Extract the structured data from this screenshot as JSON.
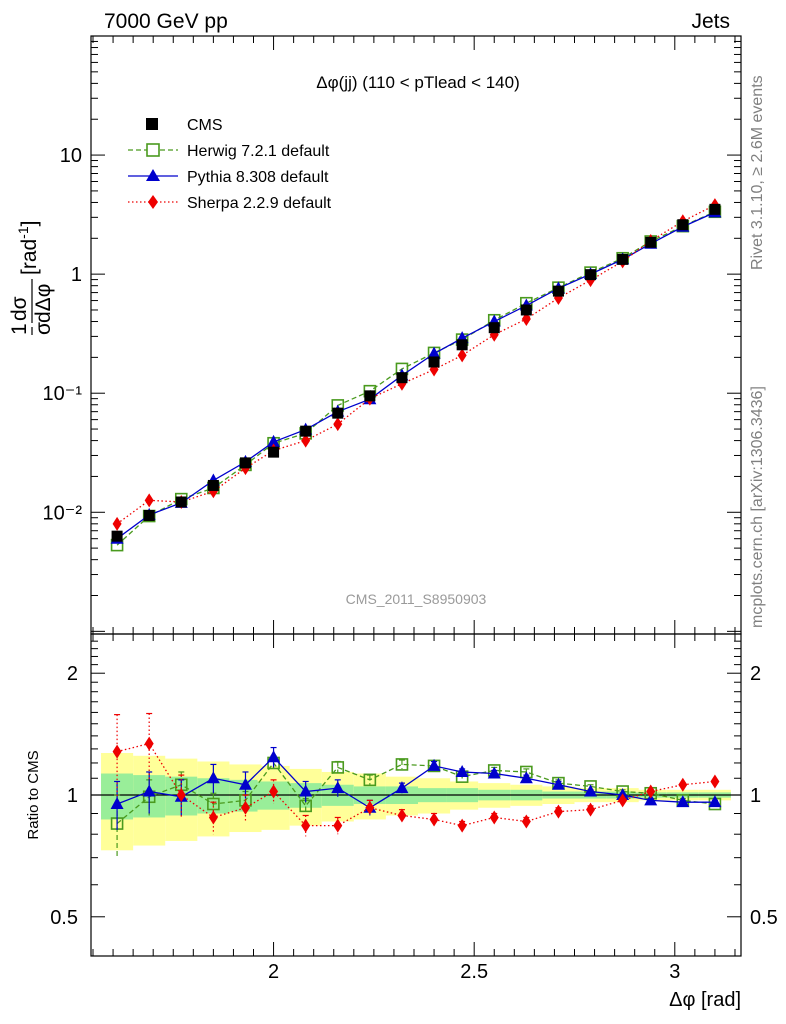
{
  "header": {
    "left": "7000 GeV pp",
    "right": "Jets"
  },
  "side_labels": {
    "rivet": "Rivet 3.1.10, ≥ 2.6M events",
    "mcplots": "mcplots.cern.ch [arXiv:1306.3436]"
  },
  "chart_data": {
    "type": "line",
    "title": "Δφ(jj) (110 < pTlead < 140)",
    "watermark": "CMS_2011_S8950903",
    "xlabel": "Δφ [rad]",
    "ylabel_main": "1/σ dσ/dΔφ [rad⁻¹]",
    "ylabel_ratio": "Ratio to CMS",
    "xlim": [
      1.545,
      3.165
    ],
    "ylim_main": [
      0.00095,
      100
    ],
    "yscale_main": "log",
    "ylim_ratio": [
      0.4,
      2.5
    ],
    "yscale_ratio": "log",
    "x_ticks": [
      "2",
      "2.5",
      "3"
    ],
    "y_ticks_main": [
      "10⁻²",
      "10⁻¹",
      "1",
      "10"
    ],
    "y_ticks_ratio": [
      "0.5",
      "1",
      "2"
    ],
    "legend_position": "top-left",
    "x": [
      1.61,
      1.69,
      1.77,
      1.85,
      1.93,
      2.0,
      2.08,
      2.16,
      2.24,
      2.32,
      2.4,
      2.47,
      2.55,
      2.63,
      2.71,
      2.79,
      2.87,
      2.94,
      3.02,
      3.1
    ],
    "band_yellow": [
      0.27,
      0.25,
      0.23,
      0.21,
      0.19,
      0.18,
      0.16,
      0.14,
      0.13,
      0.11,
      0.1,
      0.08,
      0.07,
      0.06,
      0.05,
      0.04,
      0.04,
      0.03,
      0.03,
      0.03
    ],
    "band_green": [
      0.13,
      0.12,
      0.11,
      0.1,
      0.09,
      0.08,
      0.07,
      0.06,
      0.05,
      0.05,
      0.04,
      0.04,
      0.03,
      0.03,
      0.02,
      0.02,
      0.02,
      0.015,
      0.015,
      0.015
    ],
    "series": [
      {
        "name": "CMS",
        "color": "#000000",
        "marker": "square-filled",
        "values": [
          0.0063,
          0.0094,
          0.0122,
          0.0168,
          0.026,
          0.032,
          0.048,
          0.068,
          0.095,
          0.135,
          0.183,
          0.255,
          0.355,
          0.5,
          0.72,
          0.99,
          1.33,
          1.85,
          2.6,
          3.5
        ],
        "ratio": [
          1,
          1,
          1,
          1,
          1,
          1,
          1,
          1,
          1,
          1,
          1,
          1,
          1,
          1,
          1,
          1,
          1,
          1,
          1,
          1
        ]
      },
      {
        "name": "Herwig 7.2.1 default",
        "color": "#4a9a1e",
        "marker": "square-open",
        "linestyle": "dashed",
        "values": [
          0.0053,
          0.0093,
          0.0129,
          0.016,
          0.025,
          0.038,
          0.046,
          0.079,
          0.104,
          0.16,
          0.218,
          0.282,
          0.41,
          0.57,
          0.77,
          1.03,
          1.36,
          1.88,
          2.53,
          3.34
        ],
        "ratio": [
          0.85,
          0.99,
          1.06,
          0.95,
          0.97,
          1.2,
          0.94,
          1.17,
          1.09,
          1.19,
          1.18,
          1.11,
          1.15,
          1.14,
          1.07,
          1.05,
          1.02,
          1.01,
          0.97,
          0.95
        ],
        "ratio_err": [
          0.15,
          0.1,
          0.08,
          0.06,
          0.05,
          0.05,
          0.04,
          0.04,
          0.03,
          0.03,
          0.03,
          0.02,
          0.02,
          0.02,
          0.02,
          0.01,
          0.01,
          0.01,
          0.01,
          0.01
        ]
      },
      {
        "name": "Pythia 8.308 default",
        "color": "#0000cc",
        "marker": "triangle-filled",
        "linestyle": "solid",
        "values": [
          0.006,
          0.0095,
          0.012,
          0.0185,
          0.0265,
          0.039,
          0.0495,
          0.07,
          0.089,
          0.141,
          0.215,
          0.29,
          0.4,
          0.545,
          0.76,
          1.0,
          1.33,
          1.8,
          2.5,
          3.3
        ],
        "ratio": [
          0.95,
          1.02,
          0.99,
          1.1,
          1.06,
          1.24,
          1.02,
          1.04,
          0.93,
          1.04,
          1.18,
          1.14,
          1.13,
          1.1,
          1.06,
          1.02,
          1.0,
          0.97,
          0.96,
          0.96
        ],
        "ratio_err": [
          0.13,
          0.12,
          0.1,
          0.09,
          0.08,
          0.07,
          0.06,
          0.05,
          0.04,
          0.03,
          0.03,
          0.02,
          0.02,
          0.02,
          0.02,
          0.01,
          0.01,
          0.01,
          0.01,
          0.01
        ]
      },
      {
        "name": "Sherpa 2.2.9 default",
        "color": "#ee0000",
        "marker": "diamond-filled",
        "linestyle": "dotted",
        "values": [
          0.008,
          0.0126,
          0.0122,
          0.015,
          0.0235,
          0.033,
          0.04,
          0.055,
          0.09,
          0.12,
          0.158,
          0.208,
          0.31,
          0.42,
          0.63,
          0.89,
          1.28,
          1.9,
          2.78,
          3.8
        ],
        "ratio": [
          1.28,
          1.34,
          1.0,
          0.88,
          0.93,
          1.02,
          0.84,
          0.84,
          0.93,
          0.89,
          0.87,
          0.84,
          0.88,
          0.86,
          0.91,
          0.92,
          0.97,
          1.02,
          1.06,
          1.08
        ],
        "ratio_err": [
          0.3,
          0.25,
          0.12,
          0.08,
          0.07,
          0.07,
          0.05,
          0.04,
          0.04,
          0.03,
          0.03,
          0.02,
          0.02,
          0.02,
          0.02,
          0.02,
          0.01,
          0.01,
          0.01,
          0.01
        ]
      }
    ]
  }
}
